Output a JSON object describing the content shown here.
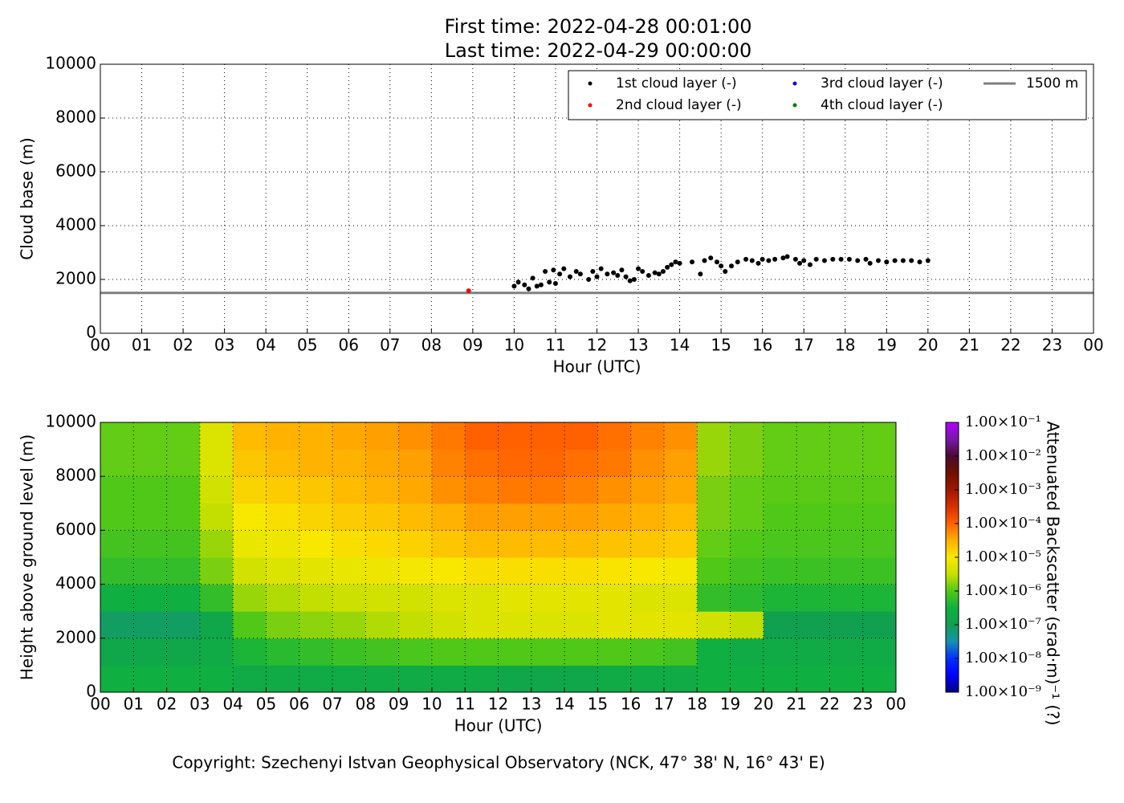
{
  "chart_data": [
    {
      "type": "scatter",
      "title": "First time: 2022-04-28 00:01:00",
      "subtitle": "Last time: 2022-04-29 00:00:00",
      "x_label": "Hour (UTC)",
      "y_label": "Cloud base (m)",
      "xlim": [
        0,
        24
      ],
      "xticks": [
        {
          "value": 0,
          "label": "00"
        },
        {
          "value": 1,
          "label": "01"
        },
        {
          "value": 2,
          "label": "02"
        },
        {
          "value": 3,
          "label": "03"
        },
        {
          "value": 4,
          "label": "04"
        },
        {
          "value": 5,
          "label": "05"
        },
        {
          "value": 6,
          "label": "06"
        },
        {
          "value": 7,
          "label": "07"
        },
        {
          "value": 8,
          "label": "08"
        },
        {
          "value": 9,
          "label": "09"
        },
        {
          "value": 10,
          "label": "10"
        },
        {
          "value": 11,
          "label": "11"
        },
        {
          "value": 12,
          "label": "12"
        },
        {
          "value": 13,
          "label": "13"
        },
        {
          "value": 14,
          "label": "14"
        },
        {
          "value": 15,
          "label": "15"
        },
        {
          "value": 16,
          "label": "16"
        },
        {
          "value": 17,
          "label": "17"
        },
        {
          "value": 18,
          "label": "18"
        },
        {
          "value": 19,
          "label": "19"
        },
        {
          "value": 20,
          "label": "20"
        },
        {
          "value": 21,
          "label": "21"
        },
        {
          "value": 22,
          "label": "22"
        },
        {
          "value": 23,
          "label": "23"
        },
        {
          "value": 24,
          "label": "00"
        }
      ],
      "ylim": [
        0,
        10000
      ],
      "yticks": [
        0,
        2000,
        4000,
        6000,
        8000,
        10000
      ],
      "grid": true,
      "series": [
        {
          "name": "1st cloud layer (-)",
          "color": "#000000",
          "x": [
            10.0,
            10.1,
            10.25,
            10.35,
            10.45,
            10.55,
            10.65,
            10.75,
            10.85,
            10.95,
            11.0,
            11.1,
            11.2,
            11.35,
            11.5,
            11.6,
            11.8,
            11.9,
            12.0,
            12.1,
            12.25,
            12.4,
            12.5,
            12.6,
            12.7,
            12.8,
            12.9,
            13.0,
            13.1,
            13.25,
            13.4,
            13.5,
            13.6,
            13.7,
            13.8,
            13.9,
            14.0,
            14.3,
            14.5,
            14.6,
            14.75,
            14.9,
            15.0,
            15.1,
            15.25,
            15.4,
            15.6,
            15.75,
            15.9,
            16.0,
            16.15,
            16.3,
            16.5,
            16.6,
            16.8,
            16.9,
            17.0,
            17.15,
            17.3,
            17.5,
            17.7,
            17.9,
            18.1,
            18.3,
            18.5,
            18.6,
            18.8,
            19.0,
            19.2,
            19.4,
            19.6,
            19.8,
            20.0
          ],
          "values": [
            1750,
            1900,
            1800,
            1650,
            2050,
            1750,
            1800,
            2300,
            1900,
            2350,
            1850,
            2200,
            2400,
            2100,
            2300,
            2200,
            2000,
            2300,
            2100,
            2400,
            2200,
            2250,
            2150,
            2350,
            2100,
            1950,
            2000,
            2400,
            2300,
            2150,
            2250,
            2200,
            2300,
            2450,
            2550,
            2650,
            2600,
            2650,
            2200,
            2700,
            2800,
            2650,
            2500,
            2300,
            2500,
            2650,
            2750,
            2700,
            2600,
            2750,
            2700,
            2750,
            2800,
            2850,
            2750,
            2600,
            2700,
            2550,
            2750,
            2700,
            2750,
            2750,
            2750,
            2700,
            2750,
            2600,
            2700,
            2650,
            2700,
            2700,
            2700,
            2650,
            2700
          ]
        },
        {
          "name": "2nd cloud layer (-)",
          "color": "#ff0000",
          "x": [
            8.9
          ],
          "values": [
            1580
          ]
        },
        {
          "name": "3rd cloud layer (-)",
          "color": "#0000ff",
          "x": [],
          "values": []
        },
        {
          "name": "4th cloud layer (-)",
          "color": "#008000",
          "x": [],
          "values": []
        }
      ],
      "hlines": [
        {
          "name": "1500 m",
          "value": 1500,
          "color": "#808080"
        }
      ]
    },
    {
      "type": "heatmap",
      "x_label": "Hour (UTC)",
      "y_label": "Height above ground level (m)",
      "xlim": [
        0,
        24
      ],
      "xticks": [
        {
          "value": 0,
          "label": "00"
        },
        {
          "value": 1,
          "label": "01"
        },
        {
          "value": 2,
          "label": "02"
        },
        {
          "value": 3,
          "label": "03"
        },
        {
          "value": 4,
          "label": "04"
        },
        {
          "value": 5,
          "label": "05"
        },
        {
          "value": 6,
          "label": "06"
        },
        {
          "value": 7,
          "label": "07"
        },
        {
          "value": 8,
          "label": "08"
        },
        {
          "value": 9,
          "label": "09"
        },
        {
          "value": 10,
          "label": "10"
        },
        {
          "value": 11,
          "label": "11"
        },
        {
          "value": 12,
          "label": "12"
        },
        {
          "value": 13,
          "label": "13"
        },
        {
          "value": 14,
          "label": "14"
        },
        {
          "value": 15,
          "label": "15"
        },
        {
          "value": 16,
          "label": "16"
        },
        {
          "value": 17,
          "label": "17"
        },
        {
          "value": 18,
          "label": "18"
        },
        {
          "value": 19,
          "label": "19"
        },
        {
          "value": 20,
          "label": "20"
        },
        {
          "value": 21,
          "label": "21"
        },
        {
          "value": 22,
          "label": "22"
        },
        {
          "value": 23,
          "label": "23"
        },
        {
          "value": 24,
          "label": "00"
        }
      ],
      "ylim": [
        0,
        10000
      ],
      "yticks": [
        0,
        2000,
        4000,
        6000,
        8000,
        10000
      ],
      "grid": true,
      "xbins": [
        0,
        1,
        2,
        3,
        4,
        5,
        6,
        7,
        8,
        9,
        10,
        11,
        12,
        13,
        14,
        15,
        16,
        17,
        18,
        19,
        20,
        21,
        22,
        23,
        24
      ],
      "ybins": [
        0,
        1000,
        2000,
        3000,
        4000,
        5000,
        6000,
        7000,
        8000,
        9000,
        10000
      ],
      "z": [
        [
          3e-07,
          3e-07,
          3e-07,
          3e-07,
          2e-07,
          2e-07,
          2e-07,
          2e-07,
          2e-07,
          2e-07,
          2e-07,
          2e-07,
          1.5e-07,
          1.5e-07,
          1.5e-07,
          2e-07,
          2e-07,
          2e-07,
          3e-07,
          3e-07,
          3e-07,
          3e-07,
          3e-07,
          3e-07
        ],
        [
          1.5e-07,
          1.5e-07,
          1.5e-07,
          2e-07,
          4e-07,
          5e-07,
          6e-07,
          7e-07,
          8e-07,
          9e-07,
          1e-06,
          1e-06,
          1e-06,
          1e-06,
          1e-06,
          1e-06,
          9e-07,
          8e-07,
          3e-07,
          2e-07,
          2e-07,
          2e-07,
          2e-07,
          2e-07
        ],
        [
          8e-08,
          8e-08,
          8e-08,
          1.5e-07,
          1e-06,
          1.5e-06,
          1.8e-06,
          2e-06,
          2.5e-06,
          3e-06,
          4e-06,
          5e-06,
          5e-06,
          5e-06,
          5e-06,
          6e-06,
          6e-06,
          6e-06,
          4e-06,
          3e-06,
          1e-07,
          1e-07,
          1e-07,
          1e-07
        ],
        [
          3e-07,
          3e-07,
          3e-07,
          6e-07,
          2e-06,
          2.5e-06,
          3e-06,
          3.5e-06,
          4e-06,
          4e-06,
          5e-06,
          5e-06,
          6e-06,
          6e-06,
          6e-06,
          6e-06,
          5e-06,
          5e-06,
          6e-07,
          5e-07,
          4e-07,
          4e-07,
          4e-07,
          4e-07
        ],
        [
          6e-07,
          6e-07,
          6e-07,
          1.5e-06,
          4e-06,
          5e-06,
          6e-06,
          7e-06,
          8e-06,
          9e-06,
          1e-05,
          1.2e-05,
          1.2e-05,
          1.2e-05,
          1.2e-05,
          1.1e-05,
          1e-05,
          9e-06,
          1e-06,
          8e-07,
          7e-07,
          7e-07,
          7e-07,
          7e-07
        ],
        [
          8e-07,
          8e-07,
          8e-07,
          2e-06,
          7e-06,
          8e-06,
          1e-05,
          1.2e-05,
          1.4e-05,
          1.6e-05,
          2e-05,
          2.5e-05,
          2.5e-05,
          2.5e-05,
          2.5e-05,
          2.2e-05,
          2e-05,
          1.8e-05,
          1.2e-06,
          1e-06,
          9e-07,
          9e-07,
          9e-07,
          9e-07
        ],
        [
          1e-06,
          1e-06,
          1e-06,
          3e-06,
          1e-05,
          1.2e-05,
          1.5e-05,
          1.8e-05,
          2e-05,
          2.5e-05,
          3e-05,
          4e-05,
          4e-05,
          4e-05,
          4e-05,
          3.5e-05,
          3e-05,
          2.5e-05,
          1.5e-06,
          1.2e-06,
          1e-06,
          1e-06,
          1e-06,
          1e-06
        ],
        [
          1e-06,
          1e-06,
          1e-06,
          4e-06,
          1.5e-05,
          1.8e-05,
          2e-05,
          2.5e-05,
          3e-05,
          3.5e-05,
          5e-05,
          6e-05,
          7e-05,
          7e-05,
          6e-05,
          5e-05,
          4e-05,
          3.5e-05,
          1.5e-06,
          1.2e-06,
          1.1e-06,
          1.1e-06,
          1.1e-06,
          1.1e-06
        ],
        [
          1.2e-06,
          1.2e-06,
          1.2e-06,
          5e-06,
          2e-05,
          2.5e-05,
          3e-05,
          3e-05,
          3.5e-05,
          4e-05,
          6e-05,
          8e-05,
          9e-05,
          9e-05,
          8e-05,
          7e-05,
          5e-05,
          4e-05,
          2e-06,
          1.5e-06,
          1.2e-06,
          1.2e-06,
          1.2e-06,
          1.2e-06
        ],
        [
          1.2e-06,
          1.2e-06,
          1.2e-06,
          5e-06,
          2.5e-05,
          3e-05,
          3e-05,
          3.5e-05,
          4e-05,
          5e-05,
          7e-05,
          0.0001,
          0.0001,
          0.0001,
          0.0001,
          8e-05,
          6e-05,
          5e-05,
          2e-06,
          1.5e-06,
          1.2e-06,
          1.2e-06,
          1.2e-06,
          1.2e-06
        ]
      ],
      "clim": [
        1e-09,
        0.1
      ],
      "color_scale": "log",
      "colormap": [
        "#00007f",
        "#0000ff",
        "#0030ff",
        "#1890b0",
        "#10a050",
        "#10b040",
        "#50c818",
        "#c8e000",
        "#f8e800",
        "#ffb000",
        "#ff6000",
        "#d83000",
        "#a01800",
        "#701000",
        "#4a0a30",
        "#7818a8",
        "#b000ff"
      ],
      "colorbar_label": "Attenuated Backscatter (srad·m)⁻¹ (?)",
      "colorbar_ticks": [
        {
          "value": 1e-09,
          "label": "1.00×10⁻⁹"
        },
        {
          "value": 1e-08,
          "label": "1.00×10⁻⁸"
        },
        {
          "value": 1e-07,
          "label": "1.00×10⁻⁷"
        },
        {
          "value": 1e-06,
          "label": "1.00×10⁻⁶"
        },
        {
          "value": 1e-05,
          "label": "1.00×10⁻⁵"
        },
        {
          "value": 0.0001,
          "label": "1.00×10⁻⁴"
        },
        {
          "value": 0.001,
          "label": "1.00×10⁻³"
        },
        {
          "value": 0.01,
          "label": "1.00×10⁻²"
        },
        {
          "value": 0.1,
          "label": "1.00×10⁻¹"
        }
      ]
    }
  ],
  "footer": "Copyright: Szechenyi Istvan Geophysical Observatory (NCK, 47° 38' N, 16° 43' E)"
}
